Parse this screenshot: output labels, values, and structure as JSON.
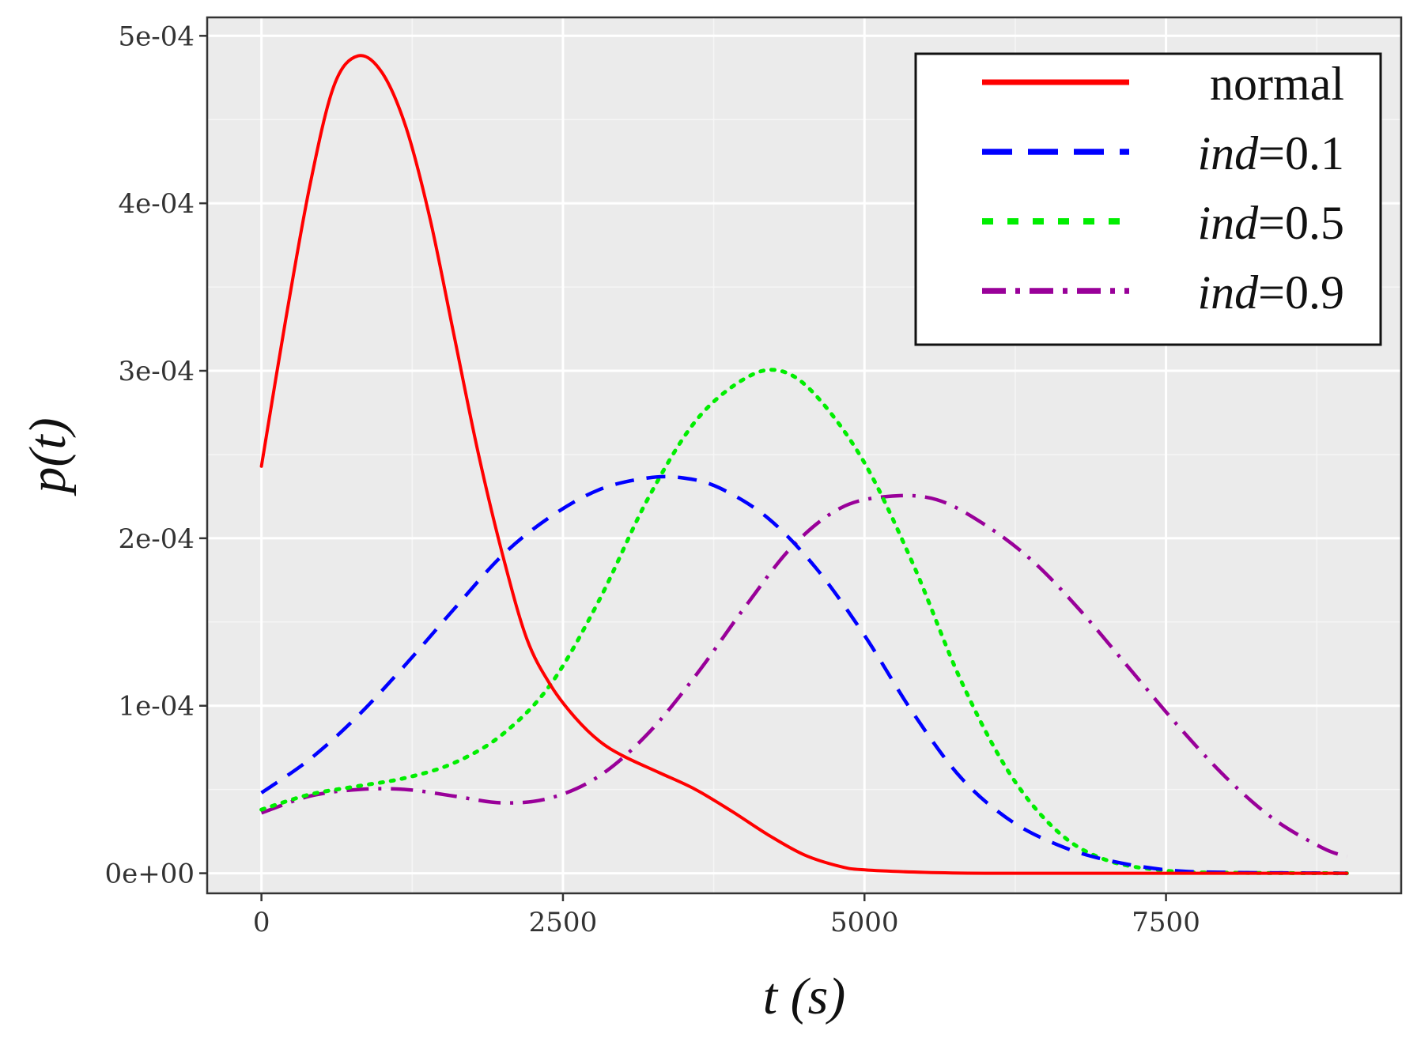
{
  "chart_data": {
    "type": "line",
    "xlabel": "t (s)",
    "ylabel": "p(t)",
    "xlim": [
      -450,
      9450
    ],
    "ylim": [
      -1.2e-05,
      0.000511
    ],
    "x_ticks": [
      0,
      2500,
      5000,
      7500
    ],
    "x_tick_labels": [
      "0",
      "2500",
      "5000",
      "7500"
    ],
    "y_ticks": [
      0,
      0.0001,
      0.0002,
      0.0003,
      0.0004,
      0.0005
    ],
    "y_tick_labels": [
      "0e+00",
      "1e-04",
      "2e-04",
      "3e-04",
      "4e-04",
      "5e-04"
    ],
    "grid": true,
    "legend_position": "top-right",
    "series": [
      {
        "name": "normal",
        "legend_italic": "",
        "legend_rest": "normal",
        "color": "#ff0000",
        "dash": "solid",
        "x": [
          0,
          200,
          400,
          600,
          800,
          1000,
          1200,
          1400,
          1600,
          1800,
          2000,
          2200,
          2400,
          2600,
          2800,
          3000,
          3300,
          3600,
          3900,
          4200,
          4500,
          4800,
          5000,
          5500,
          6000,
          7000,
          8000,
          9000
        ],
        "y": [
          0.000243,
          0.00033,
          0.00041,
          0.00047,
          0.000488,
          0.000478,
          0.000445,
          0.00039,
          0.00032,
          0.00025,
          0.00019,
          0.00014,
          0.000112,
          9.3e-05,
          7.9e-05,
          7e-05,
          6e-05,
          5e-05,
          3.7e-05,
          2.3e-05,
          1.1e-05,
          4e-06,
          2e-06,
          5e-07,
          0,
          0,
          0,
          0
        ]
      },
      {
        "name": "ind=0.1",
        "legend_italic": "ind",
        "legend_rest": "=0.1",
        "color": "#0000ff",
        "dash": "dashed",
        "x": [
          0,
          400,
          800,
          1200,
          1600,
          2000,
          2400,
          2800,
          3200,
          3500,
          3800,
          4200,
          4600,
          5000,
          5400,
          5800,
          6200,
          6600,
          7000,
          7500,
          8000,
          9000
        ],
        "y": [
          4.8e-05,
          6.8e-05,
          9.4e-05,
          0.000125,
          0.000158,
          0.00019,
          0.000213,
          0.000229,
          0.000236,
          0.000236,
          0.00023,
          0.000212,
          0.000182,
          0.000142,
          9.6e-05,
          5.7e-05,
          3.2e-05,
          1.7e-05,
          8e-06,
          2e-06,
          5e-07,
          0
        ]
      },
      {
        "name": "ind=0.5",
        "legend_italic": "ind",
        "legend_rest": "=0.5",
        "color": "#00ee00",
        "dash": "dotted",
        "x": [
          0,
          400,
          800,
          1200,
          1600,
          2000,
          2400,
          2800,
          3200,
          3600,
          4000,
          4300,
          4600,
          5000,
          5400,
          5800,
          6200,
          6600,
          7000,
          7500,
          8000,
          9000
        ],
        "y": [
          3.8e-05,
          4.7e-05,
          5.2e-05,
          5.7e-05,
          6.6e-05,
          8.3e-05,
          0.000113,
          0.000163,
          0.000223,
          0.00027,
          0.000295,
          0.0003,
          0.000285,
          0.000245,
          0.000185,
          0.000115,
          6e-05,
          2.5e-05,
          8e-06,
          1.5e-06,
          3e-07,
          0
        ]
      },
      {
        "name": "ind=0.9",
        "legend_italic": "ind",
        "legend_rest": "=0.9",
        "color": "#990099",
        "dash": "dashdot",
        "x": [
          0,
          400,
          800,
          1200,
          1600,
          2000,
          2400,
          2800,
          3200,
          3600,
          4000,
          4400,
          4800,
          5200,
          5600,
          6000,
          6400,
          6800,
          7200,
          7600,
          8000,
          8400,
          8800,
          9000
        ],
        "y": [
          3.6e-05,
          4.6e-05,
          5e-05,
          5e-05,
          4.6e-05,
          4.2e-05,
          4.5e-05,
          5.8e-05,
          8.3e-05,
          0.000118,
          0.000158,
          0.000195,
          0.000218,
          0.000225,
          0.000223,
          0.000208,
          0.000186,
          0.000156,
          0.000122,
          8.8e-05,
          5.7e-05,
          3.2e-05,
          1.5e-05,
          1e-05
        ]
      }
    ]
  }
}
